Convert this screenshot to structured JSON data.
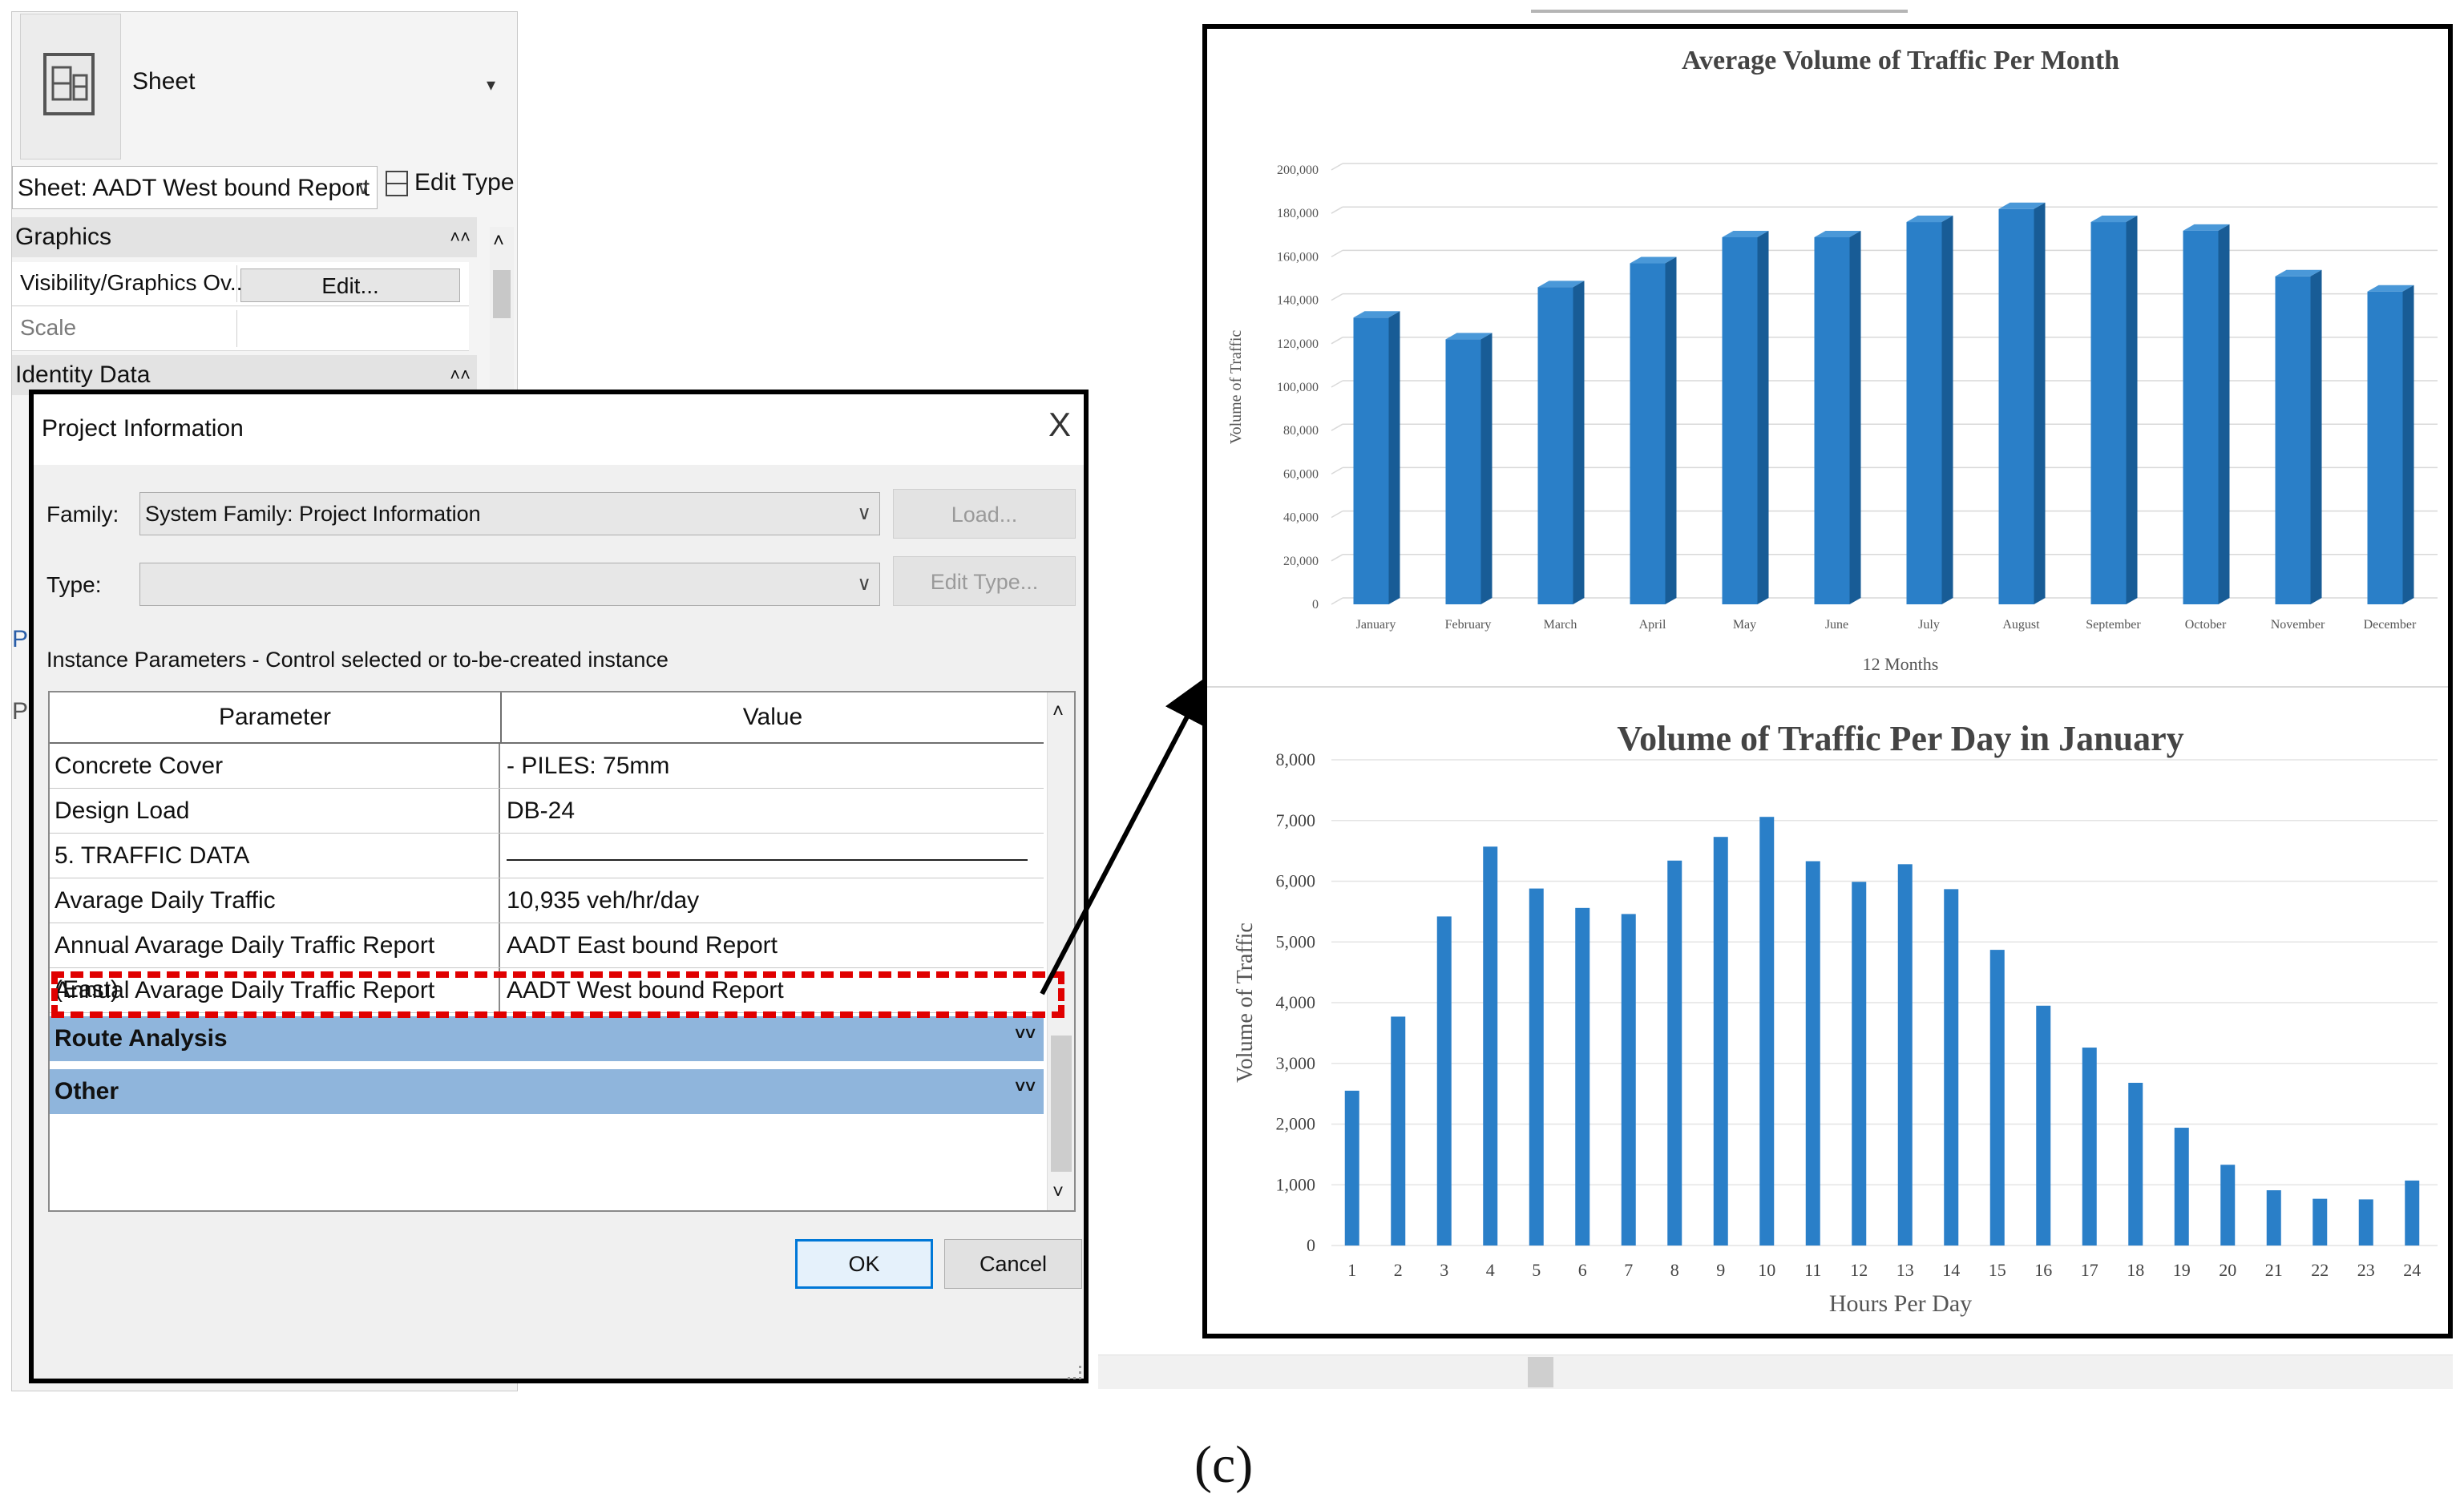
{
  "palette": {
    "type_name": "Sheet",
    "type_dropdown_arrow": "▾",
    "sheet_selector": "Sheet: AADT West bound Report",
    "edit_type": "Edit Type",
    "groups": {
      "graphics": "Graphics",
      "identity": "Identity Data"
    },
    "rows": [
      {
        "label": "Visibility/Graphics Ov...",
        "button": "Edit..."
      },
      {
        "label": "Scale",
        "value": ""
      }
    ],
    "partial_letters": [
      "P",
      "P"
    ]
  },
  "dialog": {
    "title": "Project Information",
    "close_glyph": "X",
    "family_label": "Family:",
    "family_value": "System Family: Project Information",
    "type_label": "Type:",
    "type_value": "",
    "load_button": "Load...",
    "edit_type_button": "Edit Type...",
    "instance_label": "Instance Parameters - Control selected or to-be-created instance",
    "col_parameter": "Parameter",
    "col_value": "Value",
    "rows": [
      {
        "param": "Concrete Cover",
        "value": "- PILES: 75mm"
      },
      {
        "param": "Design Load",
        "value": "DB-24"
      },
      {
        "param": "5. TRAFFIC DATA",
        "value": ""
      },
      {
        "param": "Avarage Daily Traffic",
        "value": "10,935 veh/hr/day"
      },
      {
        "param": "Annual Avarage Daily Traffic Report (East)",
        "value": "AADT East bound Report"
      },
      {
        "param": "Annual Avarage Daily Traffic Report (West)",
        "value": "AADT West bound Report"
      }
    ],
    "bands": [
      "Route Analysis",
      "Other"
    ],
    "ok_button": "OK",
    "cancel_button": "Cancel"
  },
  "caption": "(c)",
  "colors": {
    "bar": "#2a7fc8",
    "bar_side": "#185c96",
    "bar_top": "#4a98d8",
    "highlight": "#e00000",
    "band": "#8fb5dc"
  },
  "chart_data": [
    {
      "type": "bar",
      "title": "Average Volume of Traffic Per Month",
      "xlabel": "12 Months",
      "ylabel": "Volume of Traffic",
      "categories": [
        "January",
        "February",
        "March",
        "April",
        "May",
        "June",
        "July",
        "August",
        "September",
        "October",
        "November",
        "December"
      ],
      "values": [
        132000,
        122000,
        146000,
        157000,
        169000,
        169000,
        176000,
        182000,
        176000,
        172000,
        151000,
        144000
      ],
      "ylim": [
        0,
        200000
      ],
      "yticks": [
        "0",
        "20,000",
        "40,000",
        "60,000",
        "80,000",
        "100,000",
        "120,000",
        "140,000",
        "160,000",
        "180,000",
        "200,000"
      ],
      "grid": true,
      "style": "3d-column"
    },
    {
      "type": "bar",
      "title": "Volume of Traffic Per Day in January",
      "xlabel": "Hours Per Day",
      "ylabel": "Volume of Traffic",
      "categories": [
        "1",
        "2",
        "3",
        "4",
        "5",
        "6",
        "7",
        "8",
        "9",
        "10",
        "11",
        "12",
        "13",
        "14",
        "15",
        "16",
        "17",
        "18",
        "19",
        "20",
        "21",
        "22",
        "23",
        "24"
      ],
      "values": [
        2550,
        3770,
        5420,
        6570,
        5880,
        5560,
        5460,
        6340,
        6730,
        7060,
        6330,
        5990,
        6280,
        5870,
        4870,
        3950,
        3260,
        2680,
        1940,
        1330,
        910,
        770,
        760,
        1070
      ],
      "ylim": [
        0,
        8000
      ],
      "yticks": [
        "0",
        "1,000",
        "2,000",
        "3,000",
        "4,000",
        "5,000",
        "6,000",
        "7,000",
        "8,000"
      ],
      "grid": true
    }
  ]
}
